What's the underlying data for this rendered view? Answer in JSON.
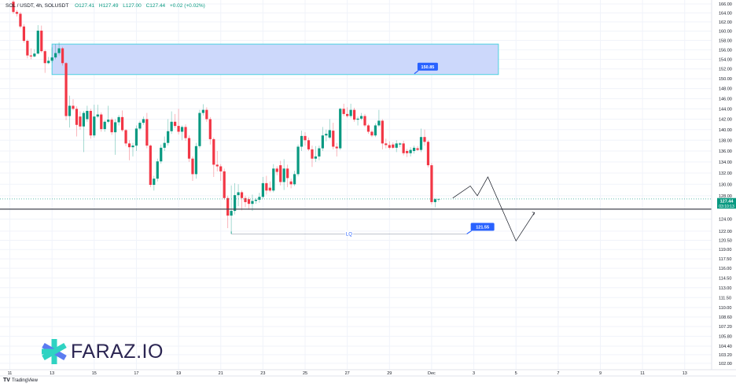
{
  "header": {
    "symbol": "SOL / USDT, 4h, SOLUSDT",
    "open": "O127.41",
    "high": "H127.49",
    "low": "L127.00",
    "close": "C127.44",
    "change": "+0.02 (+0.02%)"
  },
  "logo": {
    "text": "FARAZ.IO"
  },
  "footer": {
    "brand": "TradingView",
    "brand_icon": "tradingview-logo-icon"
  },
  "colors": {
    "up": "#089981",
    "down": "#f23645",
    "zone_fill": "#c9d6fb",
    "zone_border": "#4dd0e1",
    "label": "#2962ff",
    "line": "#131722"
  },
  "chart_data": {
    "type": "candlestick",
    "interval": "4h",
    "first_bar_time": "Nov 11 04:00",
    "y_scale": "log",
    "ylim": [
      101.5,
      166.5
    ],
    "grid": true,
    "y_ticks": [
      "166.00",
      "164.00",
      "162.00",
      "160.00",
      "158.00",
      "156.00",
      "154.00",
      "152.00",
      "150.00",
      "148.00",
      "146.00",
      "144.00",
      "142.00",
      "140.00",
      "138.00",
      "136.00",
      "134.00",
      "132.00",
      "130.00",
      "128.00",
      "124.00",
      "122.00",
      "120.50",
      "119.00",
      "117.50",
      "116.00",
      "114.50",
      "113.00",
      "111.50",
      "110.00",
      "108.60",
      "107.20",
      "105.80",
      "104.40",
      "103.20",
      "102.00"
    ],
    "x_ticks": [
      {
        "label": "11",
        "t": "Nov 11 00:00"
      },
      {
        "label": "13",
        "t": "Nov 13 00:00"
      },
      {
        "label": "15",
        "t": "Nov 15 00:00"
      },
      {
        "label": "17",
        "t": "Nov 17 00:00"
      },
      {
        "label": "19",
        "t": "Nov 19 00:00"
      },
      {
        "label": "21",
        "t": "Nov 21 00:00"
      },
      {
        "label": "23",
        "t": "Nov 23 00:00"
      },
      {
        "label": "25",
        "t": "Nov 25 00:00"
      },
      {
        "label": "27",
        "t": "Nov 27 00:00"
      },
      {
        "label": "29",
        "t": "Nov 29 00:00"
      },
      {
        "label": "Dec",
        "t": "Dec 1 00:00"
      },
      {
        "label": "3",
        "t": "Dec 3 00:00"
      },
      {
        "label": "5",
        "t": "Dec 5 00:00"
      },
      {
        "label": "7",
        "t": "Dec 7 00:00"
      },
      {
        "label": "9",
        "t": "Dec 9 00:00"
      },
      {
        "label": "11",
        "t": "Dec 11 00:00"
      },
      {
        "label": "13",
        "t": "Dec 13 00:00"
      }
    ],
    "current_price": {
      "value": 127.44,
      "label": "127.44",
      "countdown": "03:10:13"
    },
    "ohlc": [
      [
        166.5,
        167,
        163.8,
        164.2
      ],
      [
        164.2,
        164.6,
        163.2,
        163.8
      ],
      [
        163.8,
        164.2,
        160.6,
        161.0
      ],
      [
        161.0,
        161.5,
        157.5,
        157.9
      ],
      [
        157.9,
        158.2,
        154.2,
        154.8
      ],
      [
        154.8,
        156.3,
        154.0,
        154.6
      ],
      [
        154.6,
        156.1,
        154.4,
        155.2
      ],
      [
        155.2,
        161.3,
        155.0,
        160.1
      ],
      [
        160.1,
        161.2,
        155.4,
        155.7
      ],
      [
        155.7,
        156.0,
        151.2,
        153.2
      ],
      [
        153.2,
        154.5,
        153.0,
        153.7
      ],
      [
        153.7,
        156.5,
        153.3,
        154.4
      ],
      [
        154.4,
        157.2,
        154.0,
        155.3
      ],
      [
        155.3,
        157.6,
        154.8,
        156.3
      ],
      [
        156.3,
        156.6,
        152.7,
        153.2
      ],
      [
        153.2,
        153.4,
        141.8,
        142.6
      ],
      [
        142.6,
        146.6,
        140.4,
        144.6
      ],
      [
        144.6,
        145.9,
        143.7,
        144.0
      ],
      [
        144.0,
        144.5,
        138.7,
        140.9
      ],
      [
        142.5,
        143.5,
        140.0,
        140.6
      ],
      [
        140.6,
        143.6,
        135.8,
        143.2
      ],
      [
        142.0,
        144.6,
        141.5,
        143.6
      ],
      [
        143.6,
        144.0,
        138.3,
        138.9
      ],
      [
        138.9,
        144.8,
        138.5,
        142.5
      ],
      [
        142.5,
        144.8,
        142.2,
        142.9
      ],
      [
        142.9,
        143.3,
        139.6,
        140.1
      ],
      [
        140.1,
        141.8,
        139.6,
        141.5
      ],
      [
        141.5,
        144.6,
        141.2,
        141.9
      ],
      [
        141.9,
        142.3,
        139.0,
        139.5
      ],
      [
        139.5,
        142.0,
        135.3,
        141.4
      ],
      [
        141.4,
        142.8,
        140.8,
        142.4
      ],
      [
        142.4,
        143.7,
        139.6,
        139.9
      ],
      [
        139.9,
        140.1,
        136.9,
        137.4
      ],
      [
        137.4,
        138.0,
        134.3,
        136.7
      ],
      [
        136.7,
        137.5,
        135.0,
        137.0
      ],
      [
        137.0,
        140.8,
        136.0,
        140.2
      ],
      [
        140.2,
        141.7,
        139.9,
        141.3
      ],
      [
        141.3,
        142.5,
        140.9,
        142.0
      ],
      [
        142.0,
        143.2,
        136.5,
        137.0
      ],
      [
        137.0,
        137.2,
        129.5,
        129.9
      ],
      [
        129.9,
        131.5,
        128.9,
        131.0
      ],
      [
        131.0,
        134.6,
        130.5,
        134.1
      ],
      [
        134.1,
        137.2,
        133.7,
        136.6
      ],
      [
        136.6,
        138.7,
        136.0,
        137.5
      ],
      [
        137.5,
        142.0,
        137.0,
        139.7
      ],
      [
        139.7,
        143.5,
        139.2,
        141.5
      ],
      [
        141.5,
        143.0,
        140.3,
        140.7
      ],
      [
        140.7,
        144.0,
        139.1,
        139.6
      ],
      [
        139.6,
        140.8,
        138.0,
        140.5
      ],
      [
        140.5,
        141.0,
        137.9,
        138.4
      ],
      [
        138.4,
        138.9,
        134.0,
        134.6
      ],
      [
        134.6,
        135.0,
        130.6,
        131.8
      ],
      [
        131.8,
        137.5,
        131.0,
        136.9
      ],
      [
        136.9,
        143.8,
        136.5,
        143.2
      ],
      [
        143.2,
        144.9,
        142.7,
        143.8
      ],
      [
        143.8,
        144.3,
        141.5,
        142.0
      ],
      [
        142.0,
        142.4,
        137.2,
        138.2
      ],
      [
        138.2,
        138.5,
        131.3,
        133.5
      ],
      [
        133.5,
        136.0,
        132.3,
        133.2
      ],
      [
        133.2,
        133.6,
        130.6,
        132.3
      ],
      [
        132.3,
        132.8,
        127.3,
        127.6
      ],
      [
        127.6,
        128.0,
        122.5,
        124.6
      ],
      [
        124.6,
        129.8,
        121.55,
        125.4
      ],
      [
        125.4,
        130.2,
        124.8,
        128.1
      ],
      [
        128.1,
        130.0,
        126.2,
        128.6
      ],
      [
        128.6,
        128.9,
        125.5,
        127.6
      ],
      [
        127.6,
        128.0,
        126.0,
        126.9
      ],
      [
        127.4,
        127.8,
        125.6,
        126.6
      ],
      [
        126.6,
        128.2,
        125.4,
        127.1
      ],
      [
        127.1,
        127.6,
        126.6,
        127.3
      ],
      [
        127.3,
        128.5,
        126.8,
        127.8
      ],
      [
        127.8,
        131.3,
        127.5,
        130.2
      ],
      [
        130.2,
        131.5,
        128.2,
        128.9
      ],
      [
        129.4,
        130.5,
        128.6,
        128.9
      ],
      [
        128.9,
        133.6,
        128.6,
        132.8
      ],
      [
        132.8,
        133.2,
        131.6,
        132.2
      ],
      [
        133.4,
        134.2,
        129.8,
        130.4
      ],
      [
        130.4,
        134.5,
        129.0,
        132.8
      ],
      [
        132.8,
        133.5,
        129.5,
        131.1
      ],
      [
        130.5,
        131.0,
        129.3,
        130.0
      ],
      [
        130.0,
        132.4,
        129.7,
        131.8
      ],
      [
        131.8,
        137.2,
        131.4,
        136.8
      ],
      [
        136.8,
        139.8,
        136.0,
        138.8
      ],
      [
        138.8,
        139.5,
        137.0,
        138.0
      ],
      [
        138.0,
        138.5,
        136.0,
        136.3
      ],
      [
        136.3,
        137.0,
        133.1,
        134.6
      ],
      [
        134.6,
        136.9,
        134.0,
        135.0
      ],
      [
        135.0,
        137.0,
        134.3,
        136.5
      ],
      [
        136.5,
        140.5,
        136.0,
        138.9
      ],
      [
        138.9,
        140.0,
        137.8,
        139.2
      ],
      [
        138.5,
        142.0,
        138.2,
        139.9
      ],
      [
        139.8,
        141.3,
        136.3,
        136.8
      ],
      [
        136.8,
        137.5,
        135.0,
        136.5
      ],
      [
        136.5,
        144.2,
        136.2,
        144.0
      ],
      [
        144.0,
        145.0,
        142.6,
        143.0
      ],
      [
        143.0,
        144.3,
        142.3,
        142.6
      ],
      [
        142.6,
        145.0,
        142.2,
        143.8
      ],
      [
        143.8,
        144.2,
        141.5,
        141.9
      ],
      [
        141.9,
        142.5,
        140.8,
        142.1
      ],
      [
        142.1,
        143.2,
        141.8,
        142.6
      ],
      [
        142.6,
        143.0,
        140.5,
        140.8
      ],
      [
        140.8,
        141.1,
        139.2,
        139.6
      ],
      [
        139.6,
        139.9,
        138.6,
        138.9
      ],
      [
        138.9,
        141.2,
        138.6,
        140.8
      ],
      [
        140.8,
        143.8,
        140.5,
        141.7
      ],
      [
        141.7,
        142.0,
        136.3,
        137.4
      ],
      [
        137.4,
        138.3,
        136.5,
        137.1
      ],
      [
        137.1,
        137.8,
        136.3,
        136.6
      ],
      [
        137.2,
        137.6,
        136.4,
        136.6
      ],
      [
        136.6,
        138.0,
        135.8,
        137.4
      ],
      [
        137.2,
        137.6,
        136.7,
        137.4
      ],
      [
        137.4,
        137.9,
        135.2,
        135.6
      ],
      [
        136.0,
        136.4,
        134.9,
        135.6
      ],
      [
        135.6,
        136.7,
        135.0,
        136.2
      ],
      [
        136.0,
        137.0,
        135.5,
        136.6
      ],
      [
        136.5,
        136.9,
        136.0,
        136.2
      ],
      [
        136.2,
        140.2,
        135.8,
        138.6
      ],
      [
        138.6,
        140.0,
        137.0,
        137.7
      ],
      [
        137.7,
        138.0,
        133.0,
        133.4
      ],
      [
        133.4,
        133.8,
        126.5,
        126.9
      ],
      [
        126.9,
        127.6,
        126.0,
        127.4
      ],
      [
        127.41,
        127.49,
        127.0,
        127.44
      ]
    ],
    "annotations": {
      "zone": {
        "t1": "Nov 13 00:00",
        "t2": "Dec 4 04:00",
        "top": 157.2,
        "bottom": 150.85,
        "label": "150.85",
        "label_time": "Dec 1 00:00"
      },
      "support_line": {
        "price": 125.7
      },
      "liquidity_line": {
        "t1": "Nov 21 12:00",
        "t2": "Dec 2 16:00",
        "price": 121.55,
        "text": "LQ",
        "label": "121.55"
      },
      "projection": [
        {
          "t": "Dec 2 00:00",
          "p": 127.6
        },
        {
          "t": "Dec 2 20:00",
          "p": 129.7
        },
        {
          "t": "Dec 3 04:00",
          "p": 128.0
        },
        {
          "t": "Dec 3 16:00",
          "p": 131.3
        },
        {
          "t": "Dec 5 00:00",
          "p": 120.4
        },
        {
          "t": "Dec 5 21:00",
          "p": 125.1
        }
      ]
    }
  }
}
